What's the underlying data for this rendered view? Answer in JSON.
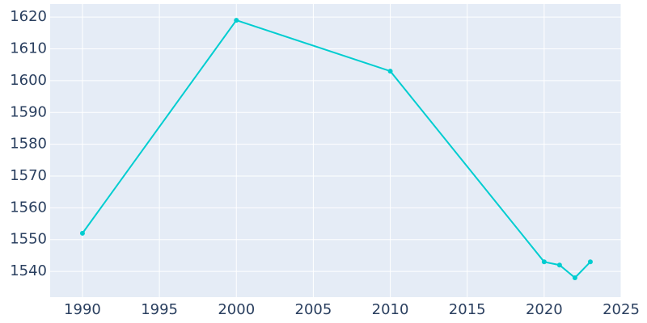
{
  "chart_data": {
    "type": "line",
    "x": [
      1990,
      2000,
      2010,
      2020,
      2021,
      2022,
      2023
    ],
    "series": [
      {
        "color": "#00cdd0",
        "values": [
          1552,
          1619,
          1603,
          1543,
          1542,
          1538,
          1543
        ]
      }
    ],
    "xlim": [
      1987.9,
      2025
    ],
    "xticks": [
      1990,
      1995,
      2000,
      2005,
      2010,
      2015,
      2020,
      2025
    ],
    "ylim": [
      1531.9,
      1624.1
    ],
    "yticks": [
      1540,
      1550,
      1560,
      1570,
      1580,
      1590,
      1600,
      1610,
      1620
    ],
    "grid": true,
    "background": "#e5ecf6"
  }
}
